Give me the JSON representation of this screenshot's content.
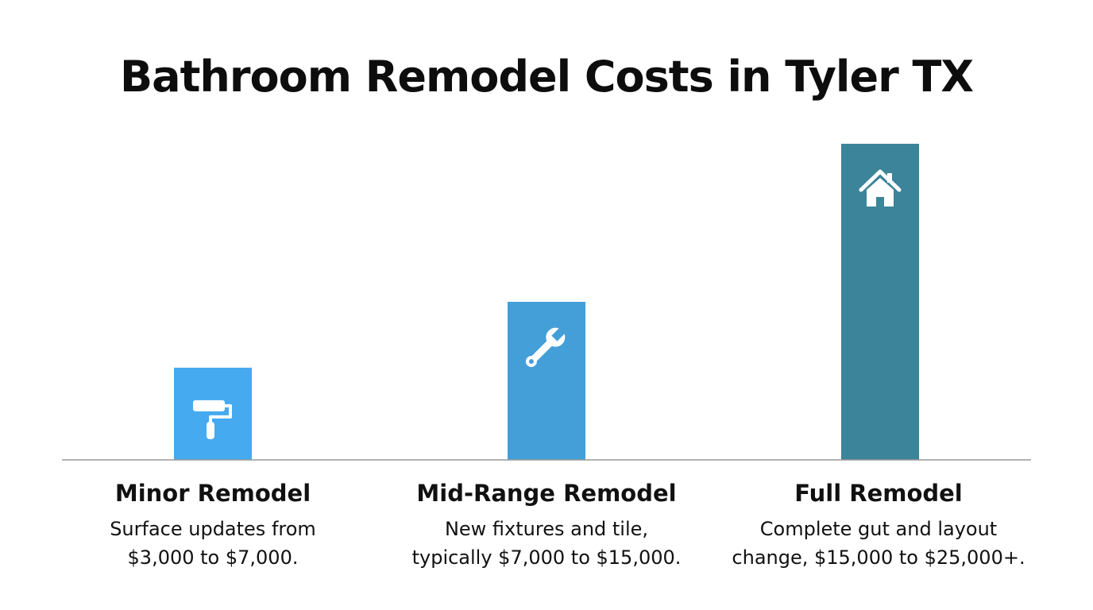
{
  "chart_data": {
    "type": "bar",
    "title": "Bathroom Remodel Costs in Tyler TX",
    "xlabel": "",
    "ylabel": "",
    "categories": [
      "Minor Remodel",
      "Mid-Range Remodel",
      "Full Remodel"
    ],
    "values": [
      7000,
      12000,
      24000
    ],
    "ylim": [
      0,
      24000
    ],
    "grid": false,
    "legend": "none",
    "descriptions": [
      [
        "Surface updates from",
        "$3,000 to $7,000."
      ],
      [
        "New fixtures and tile,",
        "typically $7,000 to $15,000."
      ],
      [
        "Complete gut and layout",
        "change, $15,000 to $25,000+."
      ]
    ],
    "bar_colors": [
      "#45aaf0",
      "#449fd8",
      "#3b8499"
    ],
    "bar_icons": [
      "paint-roller-icon",
      "wrench-icon",
      "house-icon"
    ],
    "axis_color": "#999999"
  }
}
